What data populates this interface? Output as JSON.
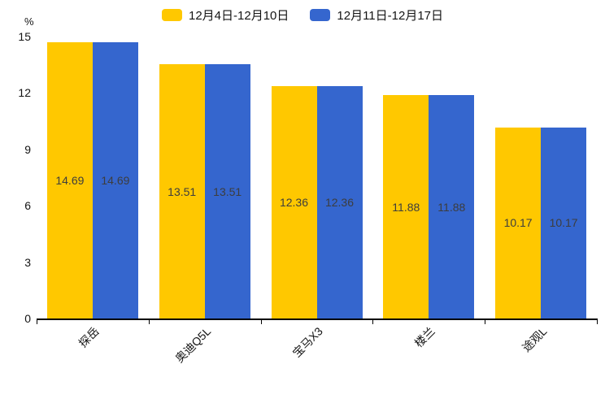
{
  "chart_data": {
    "type": "bar",
    "title": "",
    "xlabel": "",
    "ylabel": "%",
    "categories": [
      "探岳",
      "奥迪Q5L",
      "宝马X3",
      "楼兰",
      "途观L"
    ],
    "series": [
      {
        "name": "12月4日-12月10日",
        "color": "#FFC800",
        "values": [
          14.69,
          13.51,
          12.36,
          11.88,
          10.17
        ]
      },
      {
        "name": "12月11日-12月17日",
        "color": "#3566CE",
        "values": [
          14.69,
          13.51,
          12.36,
          11.88,
          10.17
        ]
      }
    ],
    "ylim": [
      0,
      15
    ],
    "yticks": [
      0,
      3,
      6,
      9,
      12,
      15
    ],
    "grid": false,
    "legend_position": "top-center",
    "value_labels": "inside-center",
    "value_label_format": "0.00"
  },
  "colors": {
    "background": "#ffffff",
    "axis": "#000000",
    "tick_text": "#141414",
    "value_text": "#3d3d3d"
  }
}
